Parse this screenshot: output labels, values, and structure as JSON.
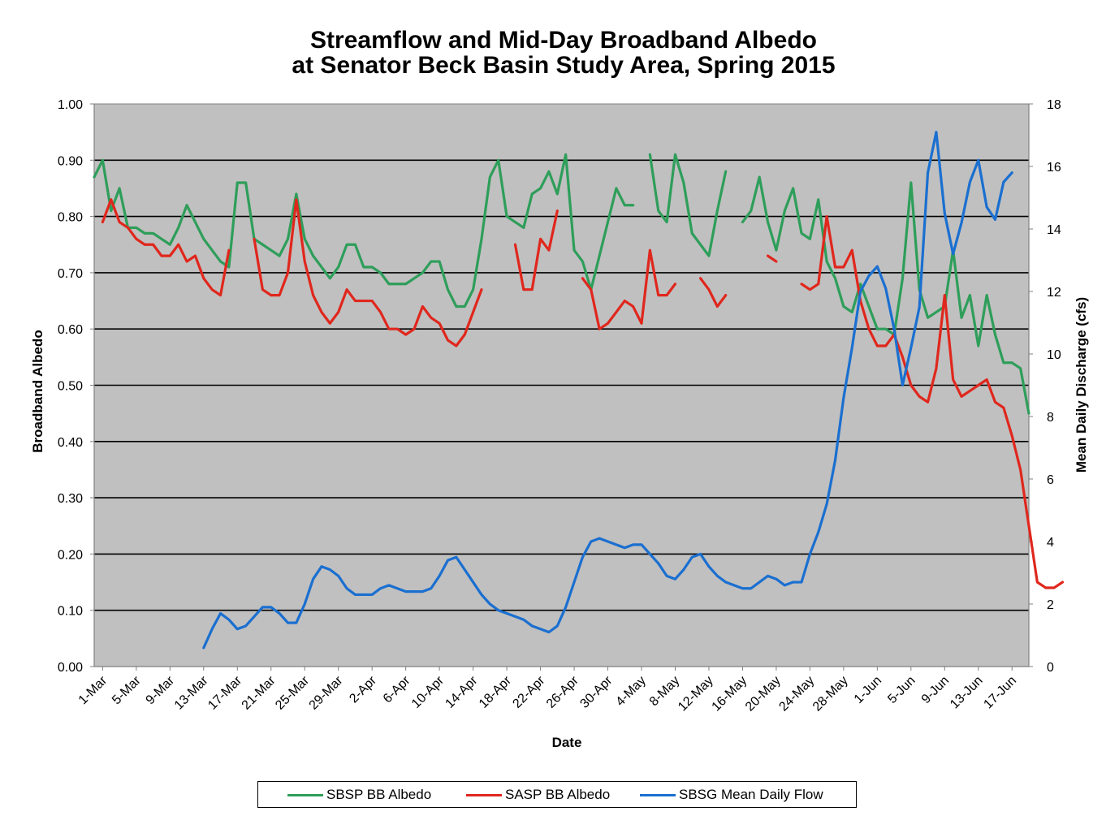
{
  "chart_data": {
    "type": "line",
    "title": [
      "Streamflow and Mid-Day Broadband Albedo",
      "at Senator Beck Basin Study Area, Spring 2015"
    ],
    "xlabel": "Date",
    "ylabel_left": "Broadband Albedo",
    "ylabel_right": "Mean Daily Discharge  (cfs)",
    "ylim_left": [
      0,
      1
    ],
    "ylim_right": [
      0,
      18
    ],
    "yticks_left": [
      "0.00",
      "0.10",
      "0.20",
      "0.30",
      "0.40",
      "0.50",
      "0.60",
      "0.70",
      "0.80",
      "0.90",
      "1.00"
    ],
    "yticks_right": [
      "0",
      "2",
      "4",
      "6",
      "8",
      "10",
      "12",
      "14",
      "16",
      "18"
    ],
    "x_labels": [
      "1-Mar",
      "5-Mar",
      "9-Mar",
      "13-Mar",
      "17-Mar",
      "21-Mar",
      "25-Mar",
      "29-Mar",
      "2-Apr",
      "6-Apr",
      "10-Apr",
      "14-Apr",
      "18-Apr",
      "22-Apr",
      "26-Apr",
      "30-Apr",
      "4-May",
      "8-May",
      "12-May",
      "16-May",
      "20-May",
      "24-May",
      "28-May",
      "1-Jun",
      "5-Jun",
      "9-Jun",
      "13-Jun",
      "17-Jun"
    ],
    "grid": true,
    "legend_position": "bottom",
    "series": [
      {
        "name": "SBSP BB Albedo",
        "axis": "left",
        "color": "#2e9e5a",
        "start_date": "2015-02-28",
        "values": [
          0.87,
          0.9,
          0.81,
          0.85,
          0.78,
          0.78,
          0.77,
          0.77,
          0.76,
          0.75,
          0.78,
          0.82,
          0.79,
          0.76,
          0.74,
          0.72,
          0.71,
          0.86,
          0.86,
          0.76,
          0.75,
          0.74,
          0.73,
          0.76,
          0.84,
          0.76,
          0.73,
          0.71,
          0.69,
          0.71,
          0.75,
          0.75,
          0.71,
          0.71,
          0.7,
          0.68,
          0.68,
          0.68,
          0.69,
          0.7,
          0.72,
          0.72,
          0.67,
          0.64,
          0.64,
          0.67,
          0.76,
          0.87,
          0.9,
          0.8,
          0.79,
          0.78,
          0.84,
          0.85,
          0.88,
          0.84,
          0.91,
          0.74,
          0.72,
          0.67,
          0.73,
          0.79,
          0.85,
          0.82,
          0.82,
          null,
          0.91,
          0.81,
          0.79,
          0.91,
          0.86,
          0.77,
          0.75,
          0.73,
          0.81,
          0.88,
          null,
          0.79,
          0.81,
          0.87,
          0.79,
          0.74,
          0.81,
          0.85,
          0.77,
          0.76,
          0.83,
          0.72,
          0.69,
          0.64,
          0.63,
          0.68,
          0.64,
          0.6,
          0.6,
          0.59,
          0.69,
          0.86,
          0.67,
          0.62,
          0.63,
          0.64,
          0.74,
          0.62,
          0.66,
          0.57,
          0.66,
          0.59,
          0.54,
          0.54,
          0.53,
          0.45
        ]
      },
      {
        "name": "SASP BB Albedo",
        "axis": "left",
        "color": "#e0271d",
        "start_date": "2015-02-28",
        "values": [
          null,
          0.79,
          0.83,
          0.79,
          0.78,
          0.76,
          0.75,
          0.75,
          0.73,
          0.73,
          0.75,
          0.72,
          0.73,
          0.69,
          0.67,
          0.66,
          0.74,
          null,
          null,
          0.76,
          0.67,
          0.66,
          0.66,
          0.7,
          0.83,
          0.72,
          0.66,
          0.63,
          0.61,
          0.63,
          0.67,
          0.65,
          0.65,
          0.65,
          0.63,
          0.6,
          0.6,
          0.59,
          0.6,
          0.64,
          0.62,
          0.61,
          0.58,
          0.57,
          0.59,
          0.63,
          0.67,
          null,
          null,
          null,
          0.75,
          0.67,
          0.67,
          0.76,
          0.74,
          0.81,
          null,
          null,
          0.69,
          0.67,
          0.6,
          0.61,
          0.63,
          0.65,
          0.64,
          0.61,
          0.74,
          0.66,
          0.66,
          0.68,
          null,
          null,
          0.69,
          0.67,
          0.64,
          0.66,
          null,
          null,
          null,
          null,
          0.73,
          0.72,
          null,
          null,
          0.68,
          0.67,
          0.68,
          0.8,
          0.71,
          0.71,
          0.74,
          0.65,
          0.6,
          0.57,
          0.57,
          0.59,
          0.55,
          0.5,
          0.48,
          0.47,
          0.53,
          0.66,
          0.51,
          0.48,
          0.49,
          0.5,
          0.51,
          0.47,
          0.46,
          0.41,
          0.35,
          0.25,
          0.15,
          0.14,
          0.14,
          0.15
        ]
      },
      {
        "name": "SBSG Mean Daily Flow",
        "axis": "right",
        "color": "#1a6fd0",
        "start_date": "2015-03-13",
        "values": [
          0.6,
          1.2,
          1.7,
          1.5,
          1.2,
          1.3,
          1.6,
          1.9,
          1.9,
          1.7,
          1.4,
          1.4,
          2.0,
          2.8,
          3.2,
          3.1,
          2.9,
          2.5,
          2.3,
          2.3,
          2.3,
          2.5,
          2.6,
          2.5,
          2.4,
          2.4,
          2.4,
          2.5,
          2.9,
          3.4,
          3.5,
          3.1,
          2.7,
          2.3,
          2.0,
          1.8,
          1.7,
          1.6,
          1.5,
          1.3,
          1.2,
          1.1,
          1.3,
          1.9,
          2.7,
          3.5,
          4.0,
          4.1,
          4.0,
          3.9,
          3.8,
          3.9,
          3.9,
          3.6,
          3.3,
          2.9,
          2.8,
          3.1,
          3.5,
          3.6,
          3.2,
          2.9,
          2.7,
          2.6,
          2.5,
          2.5,
          2.7,
          2.9,
          2.8,
          2.6,
          2.7,
          2.7,
          3.6,
          4.3,
          5.2,
          6.6,
          8.6,
          10.2,
          12.0,
          12.5,
          12.8,
          12.1,
          10.8,
          9.0,
          10.2,
          11.5,
          15.8,
          17.1,
          14.5,
          13.2,
          14.2,
          15.5,
          16.2,
          14.7,
          14.3,
          15.5,
          15.8
        ]
      }
    ]
  }
}
